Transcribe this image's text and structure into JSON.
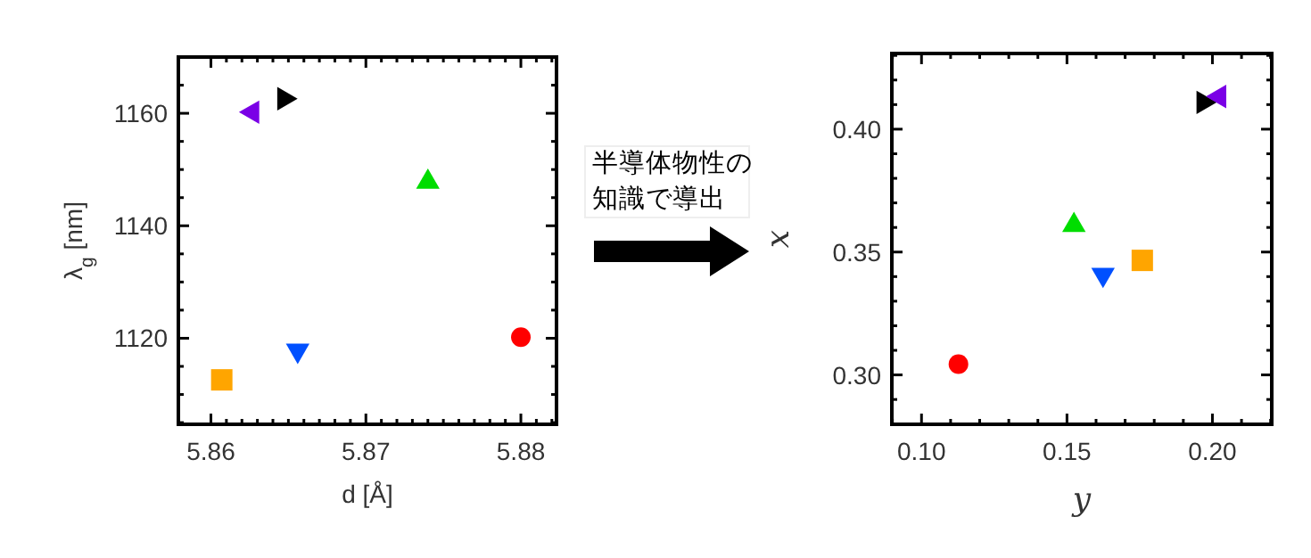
{
  "chart_data": [
    {
      "type": "scatter",
      "xlabel": "d [Å]",
      "ylabel": "λ$_{g}$ [nm]",
      "xlim": [
        5.8579,
        5.8823
      ],
      "ylim": [
        1104.7,
        1170
      ],
      "xticks": [
        5.86,
        {
          "value": 5.861,
          "label": null
        },
        {
          "value": 5.862,
          "label": null
        },
        {
          "value": 5.863,
          "label": null
        },
        {
          "value": 5.864,
          "label": null
        },
        {
          "value": 5.865,
          "label": null
        },
        {
          "value": 5.866,
          "label": null
        },
        {
          "value": 5.867,
          "label": null
        },
        {
          "value": 5.868,
          "label": null
        },
        {
          "value": 5.869,
          "label": null
        },
        5.87,
        {
          "value": 5.871,
          "label": null
        },
        {
          "value": 5.872,
          "label": null
        },
        {
          "value": 5.873,
          "label": null
        },
        {
          "value": 5.874,
          "label": null
        },
        {
          "value": 5.875,
          "label": null
        },
        {
          "value": 5.876,
          "label": null
        },
        {
          "value": 5.877,
          "label": null
        },
        {
          "value": 5.878,
          "label": null
        },
        {
          "value": 5.879,
          "label": null
        },
        5.88,
        {
          "value": 5.881,
          "label": null
        },
        {
          "value": 5.882,
          "label": null
        }
      ],
      "yticks": [
        {
          "value": 1105,
          "label": null
        },
        {
          "value": 1110,
          "label": null
        },
        {
          "value": 1115,
          "label": null
        },
        1120,
        {
          "value": 1125,
          "label": null
        },
        {
          "value": 1130,
          "label": null
        },
        {
          "value": 1135,
          "label": null
        },
        1140,
        {
          "value": 1145,
          "label": null
        },
        {
          "value": 1150,
          "label": null
        },
        {
          "value": 1155,
          "label": null
        },
        1160,
        {
          "value": 1165,
          "label": null
        },
        {
          "value": 1170,
          "label": null
        }
      ],
      "grid": false,
      "series": [
        {
          "color": "#ff0000",
          "marker": "circle",
          "x": [
            5.88
          ],
          "values": [
            1120.2
          ]
        },
        {
          "color": "#00dd00",
          "marker": "triangle",
          "x": [
            5.874
          ],
          "values": [
            1148
          ]
        },
        {
          "color": "#0050ff",
          "marker": "triangle-down",
          "x": [
            5.8656
          ],
          "values": [
            1117.6
          ]
        },
        {
          "color": "#ffa500",
          "marker": "square",
          "x": [
            5.8607
          ],
          "values": [
            1112.6
          ]
        },
        {
          "color": "#000000",
          "marker": "triangle-right",
          "x": [
            5.8648
          ],
          "values": [
            1162.6
          ]
        },
        {
          "color": "#7a00e6",
          "marker": "triangle-left",
          "x": [
            5.8626
          ],
          "values": [
            1160.2
          ]
        }
      ]
    },
    {
      "type": "other",
      "annotations": [
        "半導体物性の",
        "知識で導出"
      ]
    },
    {
      "type": "scatter",
      "xlabel": "y",
      "ylabel": "x",
      "xlim": [
        0.0898,
        0.2204
      ],
      "ylim": [
        0.2799,
        0.4308
      ],
      "xticks": [
        {
          "value": 0.09,
          "label": null
        },
        {
          "value": 0.1,
          "label": "0.10"
        },
        {
          "value": 0.11,
          "label": null
        },
        {
          "value": 0.12,
          "label": null
        },
        {
          "value": 0.13,
          "label": null
        },
        {
          "value": 0.14,
          "label": null
        },
        0.15,
        {
          "value": 0.16,
          "label": null
        },
        {
          "value": 0.17,
          "label": null
        },
        {
          "value": 0.18,
          "label": null
        },
        {
          "value": 0.19,
          "label": null
        },
        {
          "value": 0.2,
          "label": "0.20"
        },
        {
          "value": 0.21,
          "label": null
        },
        {
          "value": 0.22,
          "label": null
        }
      ],
      "yticks": [
        {
          "value": 0.28,
          "label": null
        },
        {
          "value": 0.29,
          "label": null
        },
        {
          "value": 0.3,
          "label": "0.30"
        },
        {
          "value": 0.31,
          "label": null
        },
        {
          "value": 0.32,
          "label": null
        },
        {
          "value": 0.33,
          "label": null
        },
        {
          "value": 0.34,
          "label": null
        },
        0.35,
        {
          "value": 0.36,
          "label": null
        },
        {
          "value": 0.37,
          "label": null
        },
        {
          "value": 0.38,
          "label": null
        },
        {
          "value": 0.39,
          "label": null
        },
        {
          "value": 0.4,
          "label": "0.40"
        },
        {
          "value": 0.41,
          "label": null
        },
        {
          "value": 0.42,
          "label": null
        },
        {
          "value": 0.43,
          "label": null
        }
      ],
      "grid": false,
      "series": [
        {
          "color": "#ff0000",
          "marker": "circle",
          "x": [
            0.1127
          ],
          "values": [
            0.3044
          ]
        },
        {
          "color": "#00dd00",
          "marker": "triangle",
          "x": [
            0.1524
          ],
          "values": [
            0.3614
          ]
        },
        {
          "color": "#0050ff",
          "marker": "triangle-down",
          "x": [
            0.1624
          ],
          "values": [
            0.3403
          ]
        },
        {
          "color": "#ffa500",
          "marker": "square",
          "x": [
            0.1759
          ],
          "values": [
            0.3466
          ]
        },
        {
          "color": "#000000",
          "marker": "triangle-right",
          "x": [
            0.1973
          ],
          "values": [
            0.4109
          ]
        },
        {
          "color": "#7a00e6",
          "marker": "triangle-left",
          "x": [
            0.202
          ],
          "values": [
            0.4133
          ]
        }
      ]
    }
  ]
}
